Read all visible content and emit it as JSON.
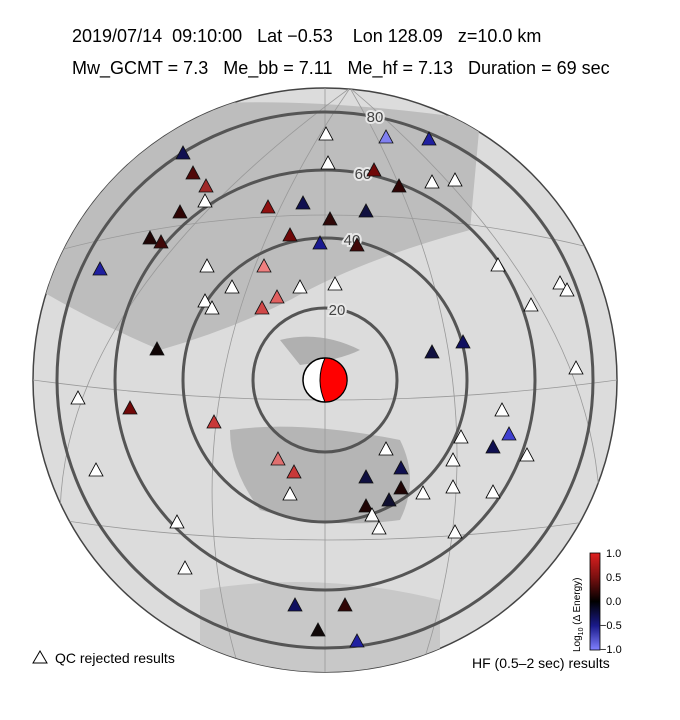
{
  "header": {
    "line1": "2019/07/14  09:10:00   Lat −0.53    Lon 128.09   z=10.0 km",
    "line2": "Mw_GCMT = 7.3   Me_bb = 7.11   Me_hf = 7.13   Duration = 69 sec"
  },
  "map": {
    "ring_labels": [
      "20",
      "40",
      "60",
      "80"
    ]
  },
  "colorbar": {
    "label_prefix": "Log",
    "label_sub": "10",
    "label_rest": " (Δ Energy)",
    "ticks": [
      "1.0",
      "0.5",
      "0.0",
      "−0.5",
      "−1.0"
    ]
  },
  "legend": {
    "qc": "QC rejected results",
    "hf": "HF (0.5–2 sec) results"
  }
}
